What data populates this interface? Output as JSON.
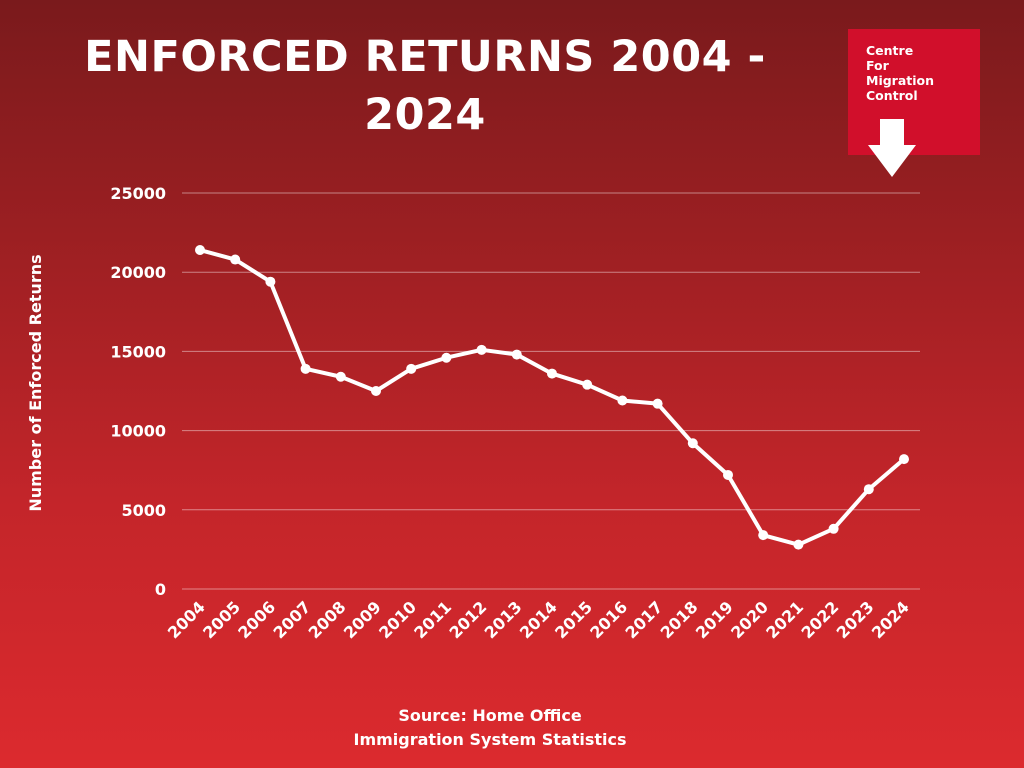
{
  "header": {
    "title": "ENFORCED RETURNS 2004 - 2024"
  },
  "logo": {
    "text": "Centre\nFor\nMigration\nControl",
    "icon": "down-arrow-icon"
  },
  "footer": {
    "source_line1": "Source: Home Office",
    "source_line2": "Immigration System Statistics"
  },
  "colors": {
    "background_top": "#7a1a1c",
    "background_bottom": "#dc2a2e",
    "line": "#ffffff",
    "logo_bg": "#d10f2b"
  },
  "chart_data": {
    "type": "line",
    "title": "ENFORCED RETURNS 2004 - 2024",
    "xlabel": "",
    "ylabel": "Number of Enforced Returns",
    "ylim": [
      0,
      25000
    ],
    "yticks": [
      0,
      5000,
      10000,
      15000,
      20000,
      25000
    ],
    "grid": true,
    "categories": [
      "2004",
      "2005",
      "2006",
      "2007",
      "2008",
      "2009",
      "2010",
      "2011",
      "2012",
      "2013",
      "2014",
      "2015",
      "2016",
      "2017",
      "2018",
      "2019",
      "2020",
      "2021",
      "2022",
      "2023",
      "2024"
    ],
    "series": [
      {
        "name": "Enforced Returns",
        "values": [
          21400,
          20800,
          19400,
          13900,
          13400,
          12500,
          13900,
          14600,
          15100,
          14800,
          13600,
          12900,
          11900,
          11700,
          9200,
          7200,
          3400,
          2800,
          3800,
          6300,
          8200
        ]
      }
    ]
  }
}
